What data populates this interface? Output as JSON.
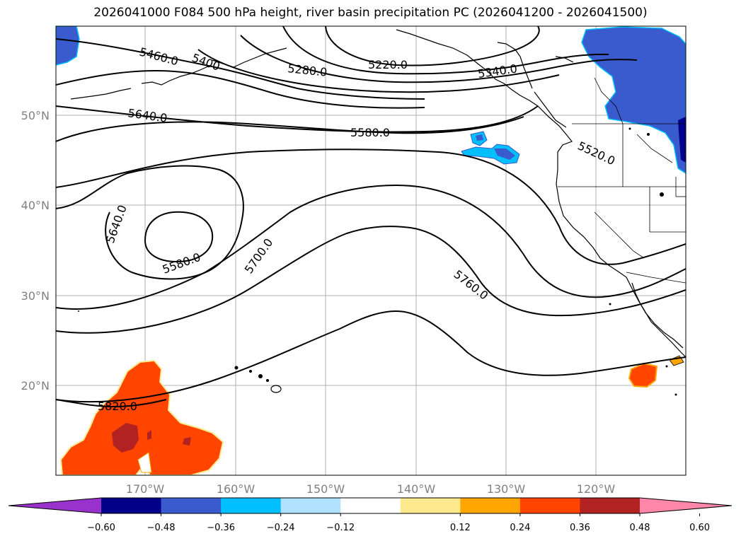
{
  "title": "2026041000 F084 500 hPa height, river basin precipitation PC (2026041200 - 2026041500)",
  "lat_ticks": [
    "50°N",
    "40°N",
    "30°N",
    "20°N"
  ],
  "lon_ticks": [
    "170°W",
    "160°W",
    "150°W",
    "140°W",
    "130°W",
    "120°W"
  ],
  "contour_labels": [
    "5460.0",
    "5400",
    "5280.0",
    "5220.0",
    "5340.0",
    "5640.0",
    "5580.0",
    "5520.0",
    "5640.0",
    "5580.0",
    "5700.0",
    "5760.0",
    "5820.0"
  ],
  "colorbar": {
    "colors": [
      "#9932cc",
      "#00008b",
      "#3a5bcd",
      "#00bfff",
      "#b0e2ff",
      "#ffffff",
      "#fce98d",
      "#ffa500",
      "#ff4500",
      "#b22222",
      "#ff88aa"
    ],
    "ticks": [
      "−0.60",
      "−0.48",
      "−0.36",
      "−0.24",
      "−0.12",
      "0.12",
      "0.24",
      "0.36",
      "0.48",
      "0.60"
    ]
  }
}
